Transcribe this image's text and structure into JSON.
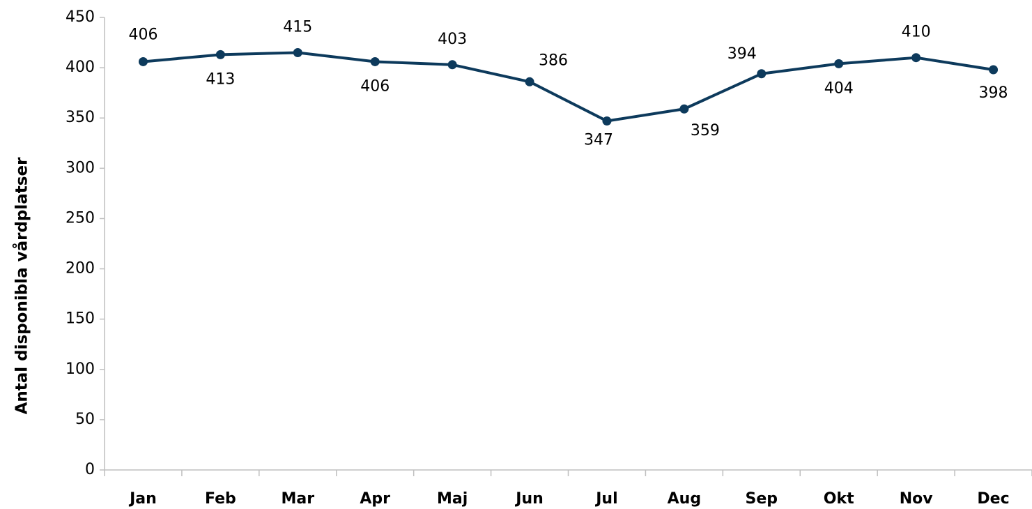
{
  "chart_data": {
    "type": "line",
    "y_label": "Antal disponibla vårdplatser",
    "categories": [
      "Jan",
      "Feb",
      "Mar",
      "Apr",
      "Maj",
      "Jun",
      "Jul",
      "Aug",
      "Sep",
      "Okt",
      "Nov",
      "Dec"
    ],
    "series": [
      {
        "name": "Antal disponibla vårdplatser",
        "color": "#0d3a5c",
        "values": [
          406,
          413,
          415,
          406,
          403,
          386,
          347,
          359,
          394,
          404,
          410,
          398
        ]
      }
    ],
    "ylim": [
      0,
      450
    ],
    "yticks": [
      0,
      50,
      100,
      150,
      200,
      250,
      300,
      350,
      400,
      450
    ],
    "grid": false
  }
}
